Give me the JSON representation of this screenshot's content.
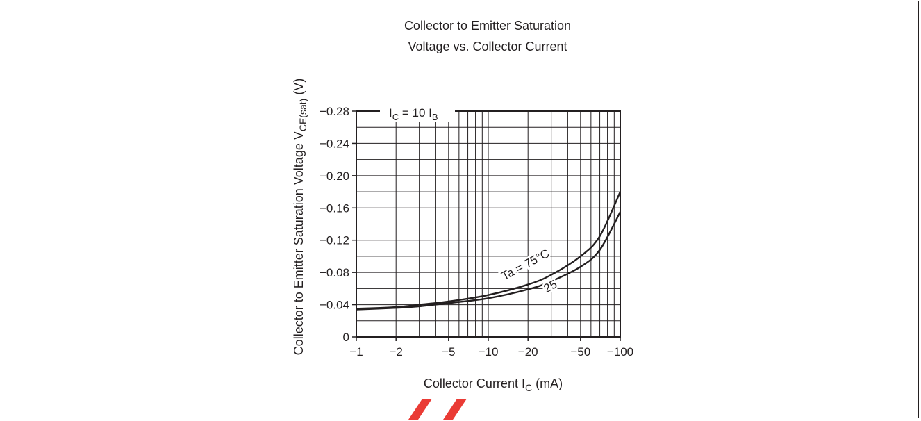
{
  "chart_data": {
    "type": "line",
    "title_lines": [
      "Collector to Emitter Saturation",
      "Voltage vs. Collector Current"
    ],
    "xlabel": {
      "text": "Collector Current  I",
      "sub": "C",
      "tail": "  (mA)"
    },
    "ylabel": {
      "text": "Collector to Emitter Saturation Voltage  V",
      "sub": "CE(sat)",
      "tail": "  (V)"
    },
    "x_scale": "log",
    "xlim": [
      -1,
      -100
    ],
    "ylim": [
      0,
      -0.28
    ],
    "x_ticks": [
      {
        "value": -1,
        "label": "−1"
      },
      {
        "value": -2,
        "label": "−2"
      },
      {
        "value": -5,
        "label": "−5"
      },
      {
        "value": -10,
        "label": "−10"
      },
      {
        "value": -20,
        "label": "−20"
      },
      {
        "value": -50,
        "label": "−50"
      },
      {
        "value": -100,
        "label": "−100"
      }
    ],
    "y_ticks": [
      {
        "value": 0,
        "label": "0"
      },
      {
        "value": -0.04,
        "label": "−0.04"
      },
      {
        "value": -0.08,
        "label": "−0.08"
      },
      {
        "value": -0.12,
        "label": "−0.12"
      },
      {
        "value": -0.16,
        "label": "−0.16"
      },
      {
        "value": -0.2,
        "label": "−0.20"
      },
      {
        "value": -0.24,
        "label": "−0.24"
      },
      {
        "value": -0.28,
        "label": "−0.28"
      }
    ],
    "grid": true,
    "condition_label": {
      "parts": [
        "I",
        "C",
        " = 10 I",
        "B"
      ]
    },
    "series": [
      {
        "name": "Ta = 75°C",
        "x": [
          -1,
          -2,
          -3,
          -5,
          -10,
          -20,
          -30,
          -50,
          -70,
          -100
        ],
        "y": [
          -0.035,
          -0.037,
          -0.04,
          -0.044,
          -0.052,
          -0.065,
          -0.077,
          -0.1,
          -0.125,
          -0.18
        ]
      },
      {
        "name": "25",
        "x": [
          -1,
          -2,
          -3,
          -5,
          -10,
          -20,
          -30,
          -50,
          -70,
          -100
        ],
        "y": [
          -0.034,
          -0.036,
          -0.038,
          -0.042,
          -0.048,
          -0.059,
          -0.069,
          -0.087,
          -0.108,
          -0.155
        ]
      }
    ],
    "line_color": "#231f20",
    "grid_color": "#231f20"
  },
  "watermark": {
    "color": "#e8261f"
  }
}
